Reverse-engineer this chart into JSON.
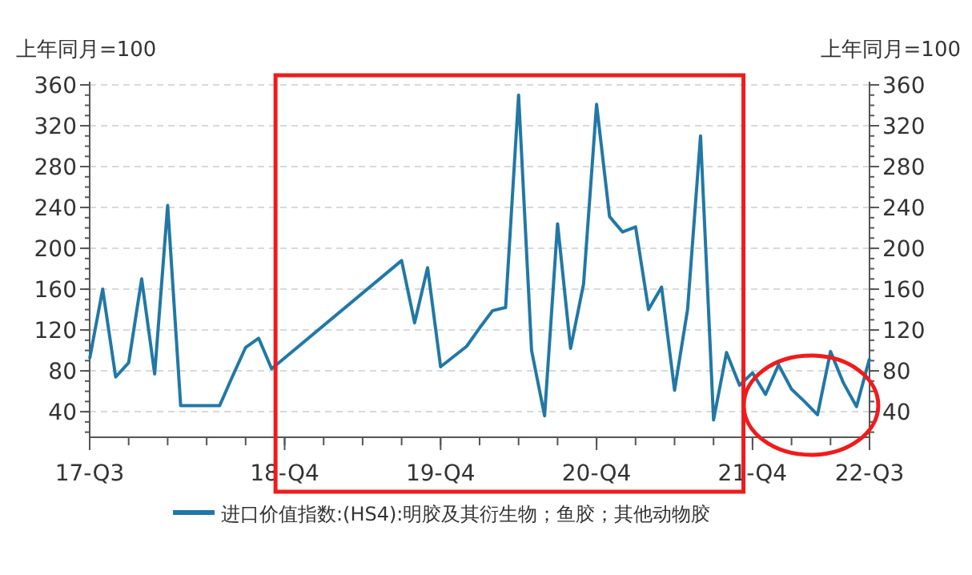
{
  "chart_data": {
    "type": "line",
    "ylabel": "上年同月=100",
    "y2label": "上年同月=100",
    "categories": [
      "17-Q3",
      null,
      null,
      null,
      null,
      null,
      null,
      null,
      null,
      null,
      null,
      null,
      null,
      null,
      null,
      "18-Q4",
      null,
      null,
      null,
      null,
      null,
      null,
      null,
      null,
      null,
      null,
      null,
      "19-Q4",
      null,
      null,
      null,
      null,
      null,
      null,
      null,
      null,
      null,
      null,
      null,
      "20-Q4",
      null,
      null,
      null,
      null,
      null,
      null,
      null,
      null,
      null,
      null,
      null,
      "21-Q4",
      null,
      null,
      null,
      null,
      null,
      null,
      null,
      null,
      "22-Q3"
    ],
    "series": [
      {
        "name": "进口价值指数:(HS4):明胶及其衍生物；鱼胶；其他动物胶",
        "color": "#2178a6",
        "values": [
          92,
          160,
          74,
          88,
          170,
          77,
          242,
          46,
          46,
          46,
          46,
          75,
          103,
          112,
          82,
          null,
          null,
          null,
          null,
          null,
          null,
          null,
          null,
          null,
          188,
          127,
          181,
          84,
          94,
          104,
          122,
          139,
          142,
          350,
          100,
          36,
          224,
          102,
          165,
          341,
          231,
          216,
          221,
          140,
          162,
          61,
          140,
          310,
          32,
          98,
          66,
          78,
          57,
          86,
          62,
          50,
          37,
          99,
          68,
          45,
          92
        ]
      }
    ],
    "ylim": [
      15,
      360
    ],
    "yticks": [
      40,
      80,
      120,
      160,
      200,
      240,
      280,
      320,
      360
    ],
    "y2lim": [
      15,
      360
    ],
    "y2ticks": [
      40,
      80,
      120,
      160,
      200,
      240,
      280,
      320,
      360
    ],
    "grid": "y",
    "legend": "bottom",
    "line_style": "solid",
    "marker": "none"
  }
}
